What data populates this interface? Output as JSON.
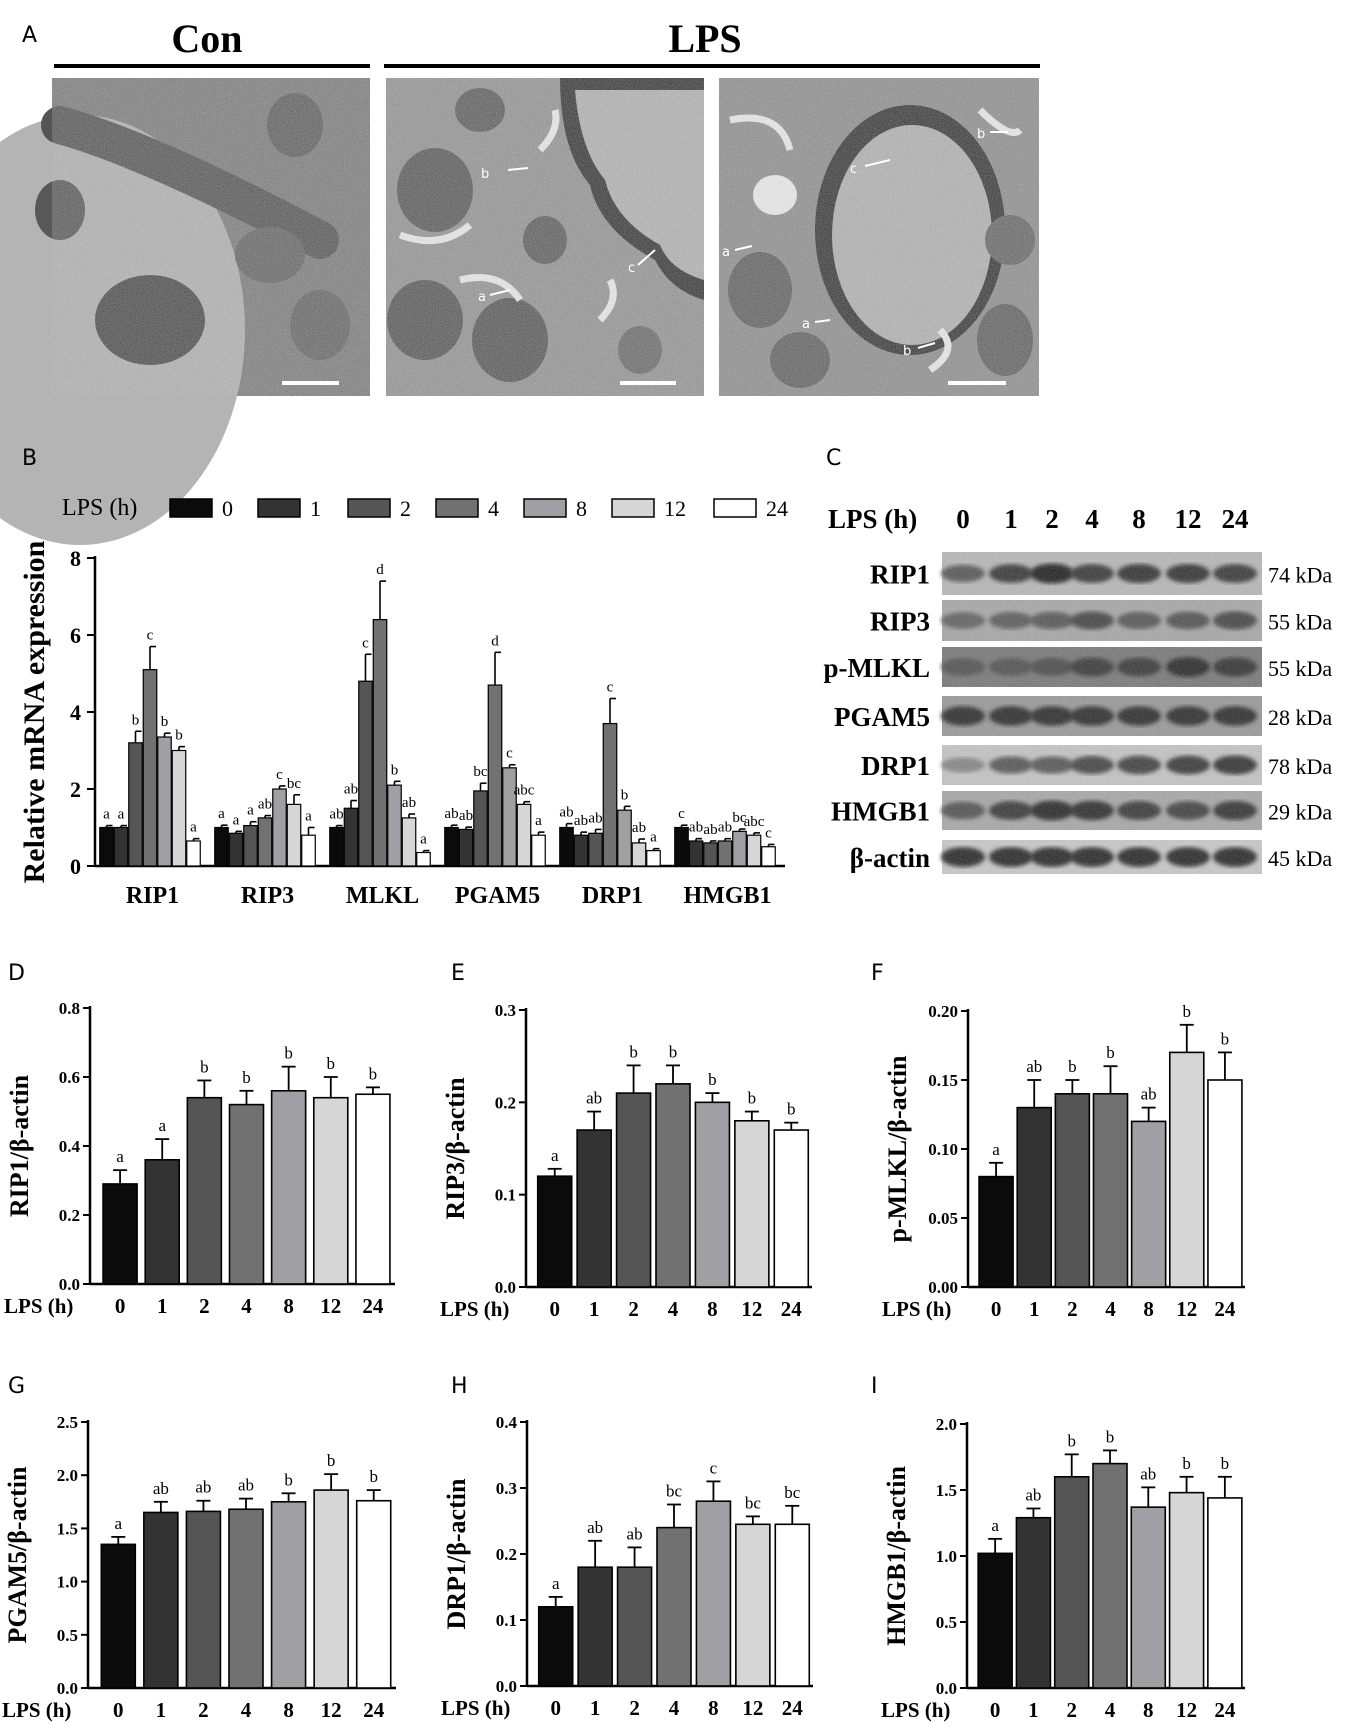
{
  "panel_letters": [
    "A",
    "B",
    "C",
    "D",
    "E",
    "F",
    "G",
    "H",
    "I"
  ],
  "panel_a": {
    "groups": [
      "Con",
      "LPS"
    ],
    "arrow_labels": {
      "img2": [
        "b",
        "a",
        "c"
      ],
      "img3": [
        "c",
        "b",
        "a",
        "a",
        "b"
      ]
    }
  },
  "panel_c": {
    "header_label": "LPS (h)",
    "timepoints": [
      "0",
      "1",
      "2",
      "4",
      "8",
      "12",
      "24"
    ],
    "proteins": [
      {
        "name": "RIP1",
        "size": "74 kDa"
      },
      {
        "name": "RIP3",
        "size": "55 kDa"
      },
      {
        "name": "p-MLKL",
        "size": "55 kDa"
      },
      {
        "name": "PGAM5",
        "size": "28 kDa"
      },
      {
        "name": "DRP1",
        "size": "78 kDa"
      },
      {
        "name": "HMGB1",
        "size": "29 kDa"
      },
      {
        "name": "β-actin",
        "size": "45 kDa"
      }
    ]
  },
  "colors": {
    "bars": [
      "#0b0b0b",
      "#333333",
      "#555555",
      "#717171",
      "#a0a0a4",
      "#d6d6d6",
      "#ffffff"
    ]
  },
  "chart_data": [
    {
      "panel": "B",
      "type": "bar",
      "ylabel": "Relative mRNA expression",
      "ylim": [
        0,
        8
      ],
      "yticks": [
        0,
        2,
        4,
        6,
        8
      ],
      "legend_title": "LPS (h)",
      "legend_position": "top",
      "categories": [
        "RIP1",
        "RIP3",
        "MLKL",
        "PGAM5",
        "DRP1",
        "HMGB1"
      ],
      "series": [
        {
          "name": "0",
          "values": [
            1.0,
            1.0,
            1.0,
            1.0,
            1.0,
            1.0
          ],
          "errors": [
            0.05,
            0.06,
            0.05,
            0.06,
            0.1,
            0.06
          ],
          "labels": [
            "a",
            "a",
            "ab",
            "ab",
            "ab",
            "c"
          ]
        },
        {
          "name": "1",
          "values": [
            1.0,
            0.85,
            1.5,
            0.95,
            0.8,
            0.65
          ],
          "errors": [
            0.05,
            0.05,
            0.2,
            0.06,
            0.08,
            0.06
          ],
          "labels": [
            "a",
            "a",
            "ab",
            "ab",
            "ab",
            "ab"
          ]
        },
        {
          "name": "2",
          "values": [
            3.2,
            1.05,
            4.8,
            1.95,
            0.85,
            0.6
          ],
          "errors": [
            0.3,
            0.1,
            0.7,
            0.2,
            0.1,
            0.05
          ],
          "labels": [
            "b",
            "a",
            "c",
            "bc",
            "ab",
            "ab"
          ]
        },
        {
          "name": "4",
          "values": [
            5.1,
            1.25,
            6.4,
            4.7,
            3.7,
            0.65
          ],
          "errors": [
            0.6,
            0.06,
            1.0,
            0.85,
            0.65,
            0.06
          ],
          "labels": [
            "c",
            "ab",
            "d",
            "d",
            "c",
            "ab"
          ]
        },
        {
          "name": "8",
          "values": [
            3.35,
            2.0,
            2.1,
            2.55,
            1.45,
            0.9
          ],
          "errors": [
            0.1,
            0.08,
            0.1,
            0.08,
            0.1,
            0.06
          ],
          "labels": [
            "b",
            "c",
            "b",
            "c",
            "b",
            "bc"
          ]
        },
        {
          "name": "12",
          "values": [
            3.0,
            1.6,
            1.25,
            1.6,
            0.6,
            0.8
          ],
          "errors": [
            0.1,
            0.25,
            0.1,
            0.07,
            0.1,
            0.06
          ],
          "labels": [
            "b",
            "bc",
            "ab",
            "abc",
            "ab",
            "abc"
          ]
        },
        {
          "name": "24",
          "values": [
            0.65,
            0.8,
            0.35,
            0.8,
            0.4,
            0.5
          ],
          "errors": [
            0.06,
            0.2,
            0.05,
            0.08,
            0.05,
            0.06
          ],
          "labels": [
            "a",
            "a",
            "a",
            "a",
            "a",
            "c"
          ]
        }
      ]
    },
    {
      "panel": "D",
      "type": "bar",
      "ylabel": "RIP1/β-actin",
      "xlabel": "LPS (h)",
      "categories": [
        "0",
        "1",
        "2",
        "4",
        "8",
        "12",
        "24"
      ],
      "ylim": [
        0,
        0.8
      ],
      "yticks": [
        "0.0",
        "0.2",
        "0.4",
        "0.6",
        "0.8"
      ],
      "values": [
        0.29,
        0.36,
        0.54,
        0.52,
        0.56,
        0.54,
        0.55
      ],
      "errors": [
        0.04,
        0.06,
        0.05,
        0.04,
        0.07,
        0.06,
        0.02
      ],
      "labels": [
        "a",
        "a",
        "b",
        "b",
        "b",
        "b",
        "b"
      ]
    },
    {
      "panel": "E",
      "type": "bar",
      "ylabel": "RIP3/β-actin",
      "xlabel": "LPS (h)",
      "categories": [
        "0",
        "1",
        "2",
        "4",
        "8",
        "12",
        "24"
      ],
      "ylim": [
        0,
        0.3
      ],
      "yticks": [
        "0.0",
        "0.1",
        "0.2",
        "0.3"
      ],
      "values": [
        0.12,
        0.17,
        0.21,
        0.22,
        0.2,
        0.18,
        0.17
      ],
      "errors": [
        0.008,
        0.02,
        0.03,
        0.02,
        0.01,
        0.01,
        0.008
      ],
      "labels": [
        "a",
        "ab",
        "b",
        "b",
        "b",
        "b",
        "b"
      ]
    },
    {
      "panel": "F",
      "type": "bar",
      "ylabel": "p-MLKL/β-actin",
      "xlabel": "LPS (h)",
      "categories": [
        "0",
        "1",
        "2",
        "4",
        "8",
        "12",
        "24"
      ],
      "ylim": [
        0,
        0.2
      ],
      "yticks": [
        "0.00",
        "0.05",
        "0.10",
        "0.15",
        "0.20"
      ],
      "values": [
        0.08,
        0.13,
        0.14,
        0.14,
        0.12,
        0.17,
        0.15
      ],
      "errors": [
        0.01,
        0.02,
        0.01,
        0.02,
        0.01,
        0.02,
        0.02
      ],
      "labels": [
        "a",
        "ab",
        "b",
        "b",
        "ab",
        "b",
        "b"
      ]
    },
    {
      "panel": "G",
      "type": "bar",
      "ylabel": "PGAM5/β-actin",
      "xlabel": "LPS (h)",
      "categories": [
        "0",
        "1",
        "2",
        "4",
        "8",
        "12",
        "24"
      ],
      "ylim": [
        0,
        2.5
      ],
      "yticks": [
        "0.0",
        "0.5",
        "1.0",
        "1.5",
        "2.0",
        "2.5"
      ],
      "values": [
        1.35,
        1.65,
        1.66,
        1.68,
        1.75,
        1.86,
        1.76
      ],
      "errors": [
        0.07,
        0.1,
        0.1,
        0.1,
        0.08,
        0.15,
        0.1
      ],
      "labels": [
        "a",
        "ab",
        "ab",
        "ab",
        "b",
        "b",
        "b"
      ]
    },
    {
      "panel": "H",
      "type": "bar",
      "ylabel": "DRP1/β-actin",
      "xlabel": "LPS (h)",
      "categories": [
        "0",
        "1",
        "2",
        "4",
        "8",
        "12",
        "24"
      ],
      "ylim": [
        0,
        0.4
      ],
      "yticks": [
        "0.0",
        "0.1",
        "0.2",
        "0.3",
        "0.4"
      ],
      "values": [
        0.12,
        0.18,
        0.18,
        0.24,
        0.28,
        0.245,
        0.245
      ],
      "errors": [
        0.015,
        0.04,
        0.03,
        0.035,
        0.03,
        0.012,
        0.028
      ],
      "labels": [
        "a",
        "ab",
        "ab",
        "bc",
        "c",
        "bc",
        "bc"
      ]
    },
    {
      "panel": "I",
      "type": "bar",
      "ylabel": "HMGB1/β-actin",
      "xlabel": "LPS (h)",
      "categories": [
        "0",
        "1",
        "2",
        "4",
        "8",
        "12",
        "24"
      ],
      "ylim": [
        0,
        2.0
      ],
      "yticks": [
        "0.0",
        "0.5",
        "1.0",
        "1.5",
        "2.0"
      ],
      "values": [
        1.02,
        1.29,
        1.6,
        1.7,
        1.37,
        1.48,
        1.44
      ],
      "errors": [
        0.11,
        0.07,
        0.17,
        0.1,
        0.15,
        0.12,
        0.16
      ],
      "labels": [
        "a",
        "ab",
        "b",
        "b",
        "ab",
        "b",
        "b"
      ]
    }
  ]
}
